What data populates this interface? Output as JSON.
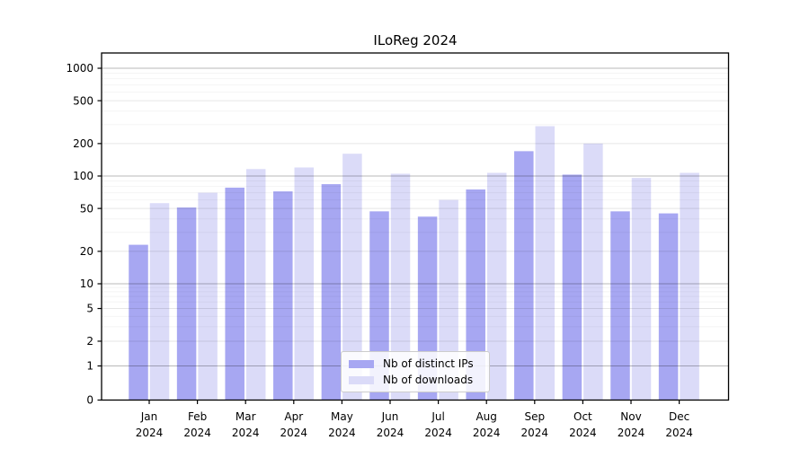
{
  "title": "ILoReg 2024",
  "chart_data": {
    "type": "bar",
    "title": "ILoReg 2024",
    "categories": [
      "Jan",
      "Feb",
      "Mar",
      "Apr",
      "May",
      "Jun",
      "Jul",
      "Aug",
      "Sep",
      "Oct",
      "Nov",
      "Dec"
    ],
    "category_year": "2024",
    "series": [
      {
        "name": "Nb of distinct IPs",
        "color": "#a7a7f2",
        "values": [
          23,
          51,
          78,
          72,
          84,
          47,
          42,
          75,
          170,
          103,
          47,
          45
        ]
      },
      {
        "name": "Nb of downloads",
        "color": "#dbdbf8",
        "values": [
          56,
          70,
          116,
          120,
          161,
          105,
          60,
          107,
          290,
          200,
          96,
          107
        ]
      }
    ],
    "y_axis": {
      "scale": "symlog",
      "ticks": [
        0,
        1,
        2,
        5,
        10,
        20,
        50,
        100,
        200,
        500,
        1000
      ],
      "ylim": [
        0,
        1000
      ]
    },
    "grid": "on",
    "legend_position": "inside-bottom-center"
  }
}
